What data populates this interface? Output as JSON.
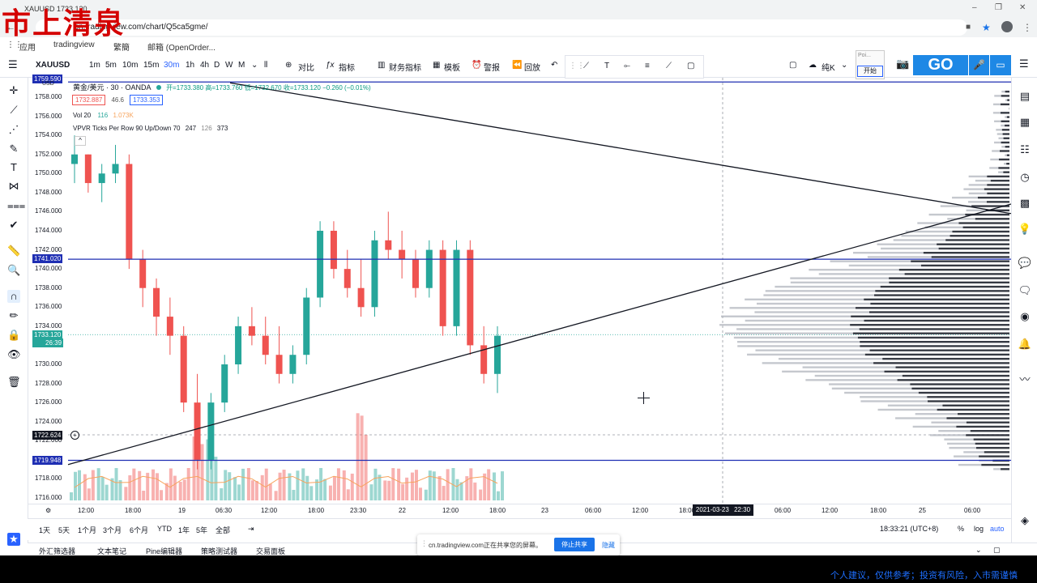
{
  "watermark": "市上清泉",
  "browser": {
    "tab_title": "XAUUSD 1733.120",
    "url": "cn.tradingview.com/chart/Q5ca5gme/",
    "bookmarks": [
      "应用",
      "tradingview",
      "繁簡",
      "邮箱 (OpenOrder..."
    ]
  },
  "toolbar": {
    "symbol": "XAUUSD",
    "intervals": [
      "1m",
      "5m",
      "10m",
      "15m",
      "30m",
      "1h",
      "4h",
      "D",
      "W",
      "M"
    ],
    "active_interval": "30m",
    "compare": "对比",
    "indicators": "指标",
    "financials": "财务指标",
    "templates": "模板",
    "alert": "警报",
    "replay": "回放",
    "unit_label": "纯K",
    "mini_box_title": "Poi...",
    "mini_box_button": "开始",
    "go_label": "GO"
  },
  "legend": {
    "title": "黄金/美元 · 30 · OANDA",
    "ohlc": "开=1733.380 高=1733.760 低=1732.670 收=1733.120 −0.260 (−0.01%)",
    "bid": "1732.887",
    "spread": "46.6",
    "ask": "1733.353",
    "vol_label": "Vol 20",
    "vol_value1": "116",
    "vol_value2": "1.073K",
    "vpvr": "VPVR Ticks Per Row 90 Up/Down 70",
    "vpvr_v1": "247",
    "vpvr_v2": "126",
    "vpvr_v3": "373"
  },
  "price_axis": {
    "labels": [
      "1758.000",
      "1756.000",
      "1754.000",
      "1752.000",
      "1750.000",
      "1748.000",
      "1746.000",
      "1744.000",
      "1742.000",
      "1740.000",
      "1738.000",
      "1736.000",
      "1734.000",
      "1732.000",
      "1730.000",
      "1728.000",
      "1726.000",
      "1724.000",
      "1722.000",
      "1720.000",
      "1718.000",
      "1716.000"
    ],
    "tag_top": "1759.590",
    "tag_usd": "USD",
    "tag_hline": "1741.020",
    "tag_last": "1733.120",
    "tag_countdown": "26:39",
    "tag_cursor": "1722.624",
    "tag_lower": "1719.948"
  },
  "time_axis": {
    "labels": [
      "12:00",
      "18:00",
      "19",
      "06:30",
      "12:00",
      "18:00",
      "23:30",
      "22",
      "12:00",
      "18:00",
      "23",
      "06:00",
      "12:00",
      "18:00",
      "06:00",
      "12:00",
      "18:00",
      "25",
      "06:00"
    ],
    "cursor_date": "2021-03-23",
    "cursor_time": "22:30"
  },
  "bottom_bar": {
    "ranges": [
      "1天",
      "5天",
      "1个月",
      "3个月",
      "6个月",
      "YTD",
      "1年",
      "5年",
      "全部"
    ],
    "clock": "18:33:21 (UTC+8)",
    "percent": "%",
    "log": "log",
    "auto": "auto"
  },
  "panel_tabs": [
    "外汇筛选器",
    "文本笔记",
    "Pine编辑器",
    "策略测试器",
    "交易面板"
  ],
  "share_popup": {
    "text": "cn.tradingview.com正在共享您的屏幕。",
    "stop": "停止共享",
    "hide": "隐藏"
  },
  "disclaimer": "个人建议，仅供参考；投资有风险，入市需谨慎",
  "colors": {
    "bull": "#26a69a",
    "bear": "#ef5350",
    "hline": "#1f2fb3",
    "accent": "#2962ff",
    "watermark": "#d40000"
  },
  "chart_data": {
    "type": "candlestick",
    "symbol": "XAUUSD",
    "interval": "30m",
    "ylim": [
      1715,
      1760
    ],
    "candles_approx": [
      [
        1751,
        1754,
        1749,
        1752
      ],
      [
        1752,
        1752,
        1748,
        1749
      ],
      [
        1749,
        1751,
        1747,
        1750
      ],
      [
        1750,
        1753,
        1749,
        1751
      ],
      [
        1751,
        1752,
        1740,
        1741
      ],
      [
        1741,
        1742,
        1736,
        1738
      ],
      [
        1738,
        1739,
        1733,
        1735
      ],
      [
        1735,
        1737,
        1731,
        1733
      ],
      [
        1733,
        1734,
        1725,
        1726
      ],
      [
        1726,
        1729,
        1719,
        1720
      ],
      [
        1720,
        1727,
        1719,
        1726
      ],
      [
        1726,
        1731,
        1725,
        1730
      ],
      [
        1730,
        1735,
        1729,
        1734
      ],
      [
        1734,
        1736,
        1732,
        1733
      ],
      [
        1733,
        1735,
        1730,
        1731
      ],
      [
        1731,
        1734,
        1728,
        1729
      ],
      [
        1729,
        1732,
        1728,
        1731
      ],
      [
        1731,
        1738,
        1730,
        1737
      ],
      [
        1737,
        1745,
        1736,
        1744
      ],
      [
        1744,
        1745,
        1739,
        1740
      ],
      [
        1740,
        1742,
        1737,
        1738
      ],
      [
        1738,
        1741,
        1735,
        1736
      ],
      [
        1736,
        1744,
        1735,
        1743
      ],
      [
        1743,
        1746,
        1741,
        1742
      ],
      [
        1742,
        1744,
        1739,
        1741
      ],
      [
        1741,
        1742,
        1737,
        1738
      ],
      [
        1738,
        1743,
        1737,
        1742
      ],
      [
        1742,
        1743,
        1733,
        1734
      ],
      [
        1734,
        1743,
        1733,
        1742
      ],
      [
        1742,
        1743,
        1731,
        1732
      ],
      [
        1732,
        1734,
        1728,
        1729
      ],
      [
        1729,
        1734,
        1727,
        1733
      ]
    ],
    "horizontal_lines": [
      1759.59,
      1741.02,
      1719.948
    ],
    "trend_lines": [
      {
        "from": "falling resistance from 1759.6",
        "to": "1746 (right edge)"
      },
      {
        "from": "rising support from 1719.5",
        "to": "1746.5 (right edge)"
      }
    ]
  }
}
